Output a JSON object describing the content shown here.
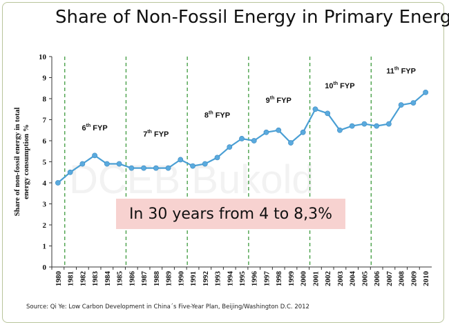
{
  "title": "Share of Non-Fossil Energy in Primary Energy",
  "callout": "In 30 years from 4 to 8,3%",
  "source": "Source: Qi Ye: Low Carbon Development in China´s  Five-Year Plan, Beijing/Washington D.C. 2012",
  "watermark": "DCEB Bukold",
  "colors": {
    "line": "#4a9fd4",
    "marker": "#5aaade",
    "divider": "#3c9a3c",
    "callout_bg": "#f7d2d0"
  },
  "chart_data": {
    "type": "line",
    "x": [
      "1980",
      "1981",
      "1982",
      "1983",
      "1984",
      "1985",
      "1986",
      "1987",
      "1988",
      "1989",
      "1990",
      "1991",
      "1992",
      "1993",
      "1994",
      "1995",
      "1996",
      "1997",
      "1998",
      "1999",
      "2000",
      "2001",
      "2002",
      "2003",
      "2004",
      "2005",
      "2006",
      "2007",
      "2008",
      "2009",
      "2010"
    ],
    "series": [
      {
        "values": [
          4.0,
          4.5,
          4.9,
          5.3,
          4.9,
          4.9,
          4.7,
          4.7,
          4.7,
          4.7,
          5.1,
          4.8,
          4.9,
          5.2,
          5.7,
          6.1,
          6.0,
          6.4,
          6.5,
          5.9,
          6.4,
          7.5,
          7.3,
          6.5,
          6.7,
          6.8,
          6.7,
          6.8,
          7.7,
          7.8,
          8.3
        ]
      }
    ],
    "ylabel": "Share of non-fossil energy in total energy consumption  %",
    "ylim": [
      0,
      10
    ],
    "yticks": [
      "0",
      "1",
      "2",
      "3",
      "4",
      "5",
      "6",
      "7",
      "8",
      "9",
      "10"
    ],
    "grid": false,
    "dividers_after": [
      "1980",
      "1985",
      "1990",
      "1995",
      "2000",
      "2005"
    ],
    "periods": [
      {
        "num": "6",
        "sup": "th",
        "label": "FYP",
        "at": "1983",
        "y": 6.5
      },
      {
        "num": "7",
        "sup": "th",
        "label": "FYP",
        "at": "1988",
        "y": 6.2
      },
      {
        "num": "8",
        "sup": "th",
        "label": "FYP",
        "at": "1993",
        "y": 7.1
      },
      {
        "num": "9",
        "sup": "th",
        "label": "FYP",
        "at": "1998",
        "y": 7.8
      },
      {
        "num": "10",
        "sup": "th",
        "label": "FYP",
        "at": "2003",
        "y": 8.5
      },
      {
        "num": "11",
        "sup": "th",
        "label": "FYP",
        "at": "2008",
        "y": 9.2
      }
    ]
  }
}
